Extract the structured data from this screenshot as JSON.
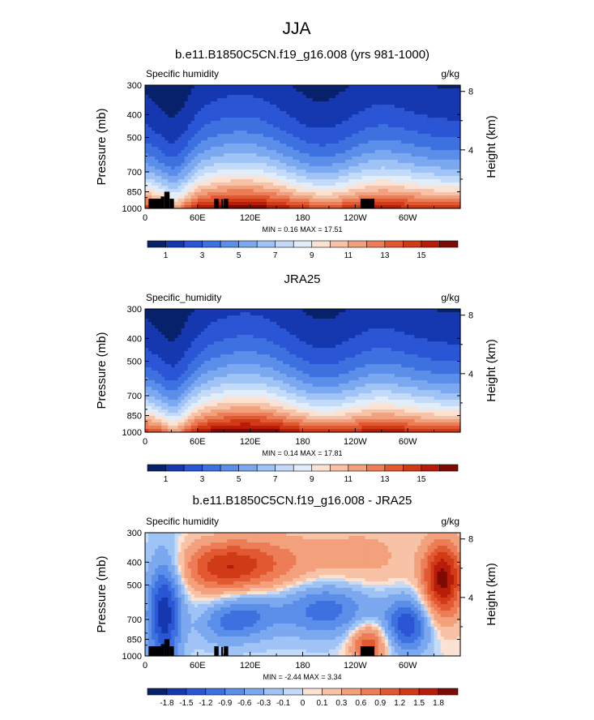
{
  "figure": {
    "title": "JJA"
  },
  "colors": {
    "cmap": [
      "#08216b",
      "#1537b0",
      "#2a55d4",
      "#3e71e0",
      "#5b8ee8",
      "#7ba8ef",
      "#9fc3f5",
      "#c3dbf8",
      "#e2edf8",
      "#fbe2d3",
      "#f8c2a6",
      "#f3a07c",
      "#ed7d56",
      "#e25831",
      "#d13a17",
      "#b81c09",
      "#7d0a03"
    ],
    "mask": "#000000",
    "axis": "#000000"
  },
  "chart_data": [
    {
      "type": "heatmap",
      "title": "b.e11.B1850C5CN.f19_g16.008 (yrs 981-1000)",
      "left_label": "Specific humidity",
      "right_label": "g/kg",
      "ylabel": "Pressure (mb)",
      "y2label": "Height (km)",
      "yticks": [
        "300",
        "400",
        "500",
        "700",
        "850",
        "1000"
      ],
      "y2ticks": [
        "8",
        "4"
      ],
      "xticks": [
        "0",
        "60E",
        "120E",
        "180",
        "120W",
        "60W"
      ],
      "stats": "MIN =   0.16  MAX =  17.51",
      "colorbar_labels": [
        "1",
        "3",
        "5",
        "7",
        "9",
        "11",
        "13",
        "15"
      ],
      "levels": [
        1,
        2,
        3,
        4,
        5,
        6,
        7,
        8,
        9,
        10,
        11,
        12,
        13,
        14,
        15,
        16
      ],
      "field": "specific_humidity",
      "masked": true
    },
    {
      "type": "heatmap",
      "title": "JRA25",
      "left_label": "Specific_humidity",
      "right_label": "g/kg",
      "ylabel": "Pressure (mb)",
      "y2label": "Height (km)",
      "yticks": [
        "300",
        "400",
        "500",
        "700",
        "850",
        "1000"
      ],
      "y2ticks": [
        "8",
        "4"
      ],
      "xticks": [
        "0",
        "60E",
        "120E",
        "180",
        "120W",
        "60W"
      ],
      "stats": "MIN =   0.14  MAX =  17.81",
      "colorbar_labels": [
        "1",
        "3",
        "5",
        "7",
        "9",
        "11",
        "13",
        "15"
      ],
      "levels": [
        1,
        2,
        3,
        4,
        5,
        6,
        7,
        8,
        9,
        10,
        11,
        12,
        13,
        14,
        15,
        16
      ],
      "field": "specific_humidity",
      "masked": false
    },
    {
      "type": "heatmap",
      "title": "b.e11.B1850C5CN.f19_g16.008 - JRA25",
      "left_label": "Specific humidity",
      "right_label": "g/kg",
      "ylabel": "Pressure (mb)",
      "y2label": "Height (km)",
      "yticks": [
        "300",
        "400",
        "500",
        "700",
        "850",
        "1000"
      ],
      "y2ticks": [
        "8",
        "4"
      ],
      "xticks": [
        "0",
        "60E",
        "120E",
        "180",
        "120W",
        "60W"
      ],
      "stats": "MIN =  -2.44  MAX =   3.34",
      "colorbar_labels": [
        "-1.8",
        "-1.5",
        "-1.2",
        "-0.9",
        "-0.6",
        "-0.3",
        "-0.1",
        "0",
        "0.1",
        "0.3",
        "0.6",
        "0.9",
        "1.2",
        "1.5",
        "1.8"
      ],
      "levels": [
        -1.8,
        -1.5,
        -1.2,
        -0.9,
        -0.6,
        -0.3,
        -0.1,
        0,
        0.1,
        0.3,
        0.6,
        0.9,
        1.2,
        1.5,
        1.8
      ],
      "field": "difference",
      "masked": true
    }
  ]
}
